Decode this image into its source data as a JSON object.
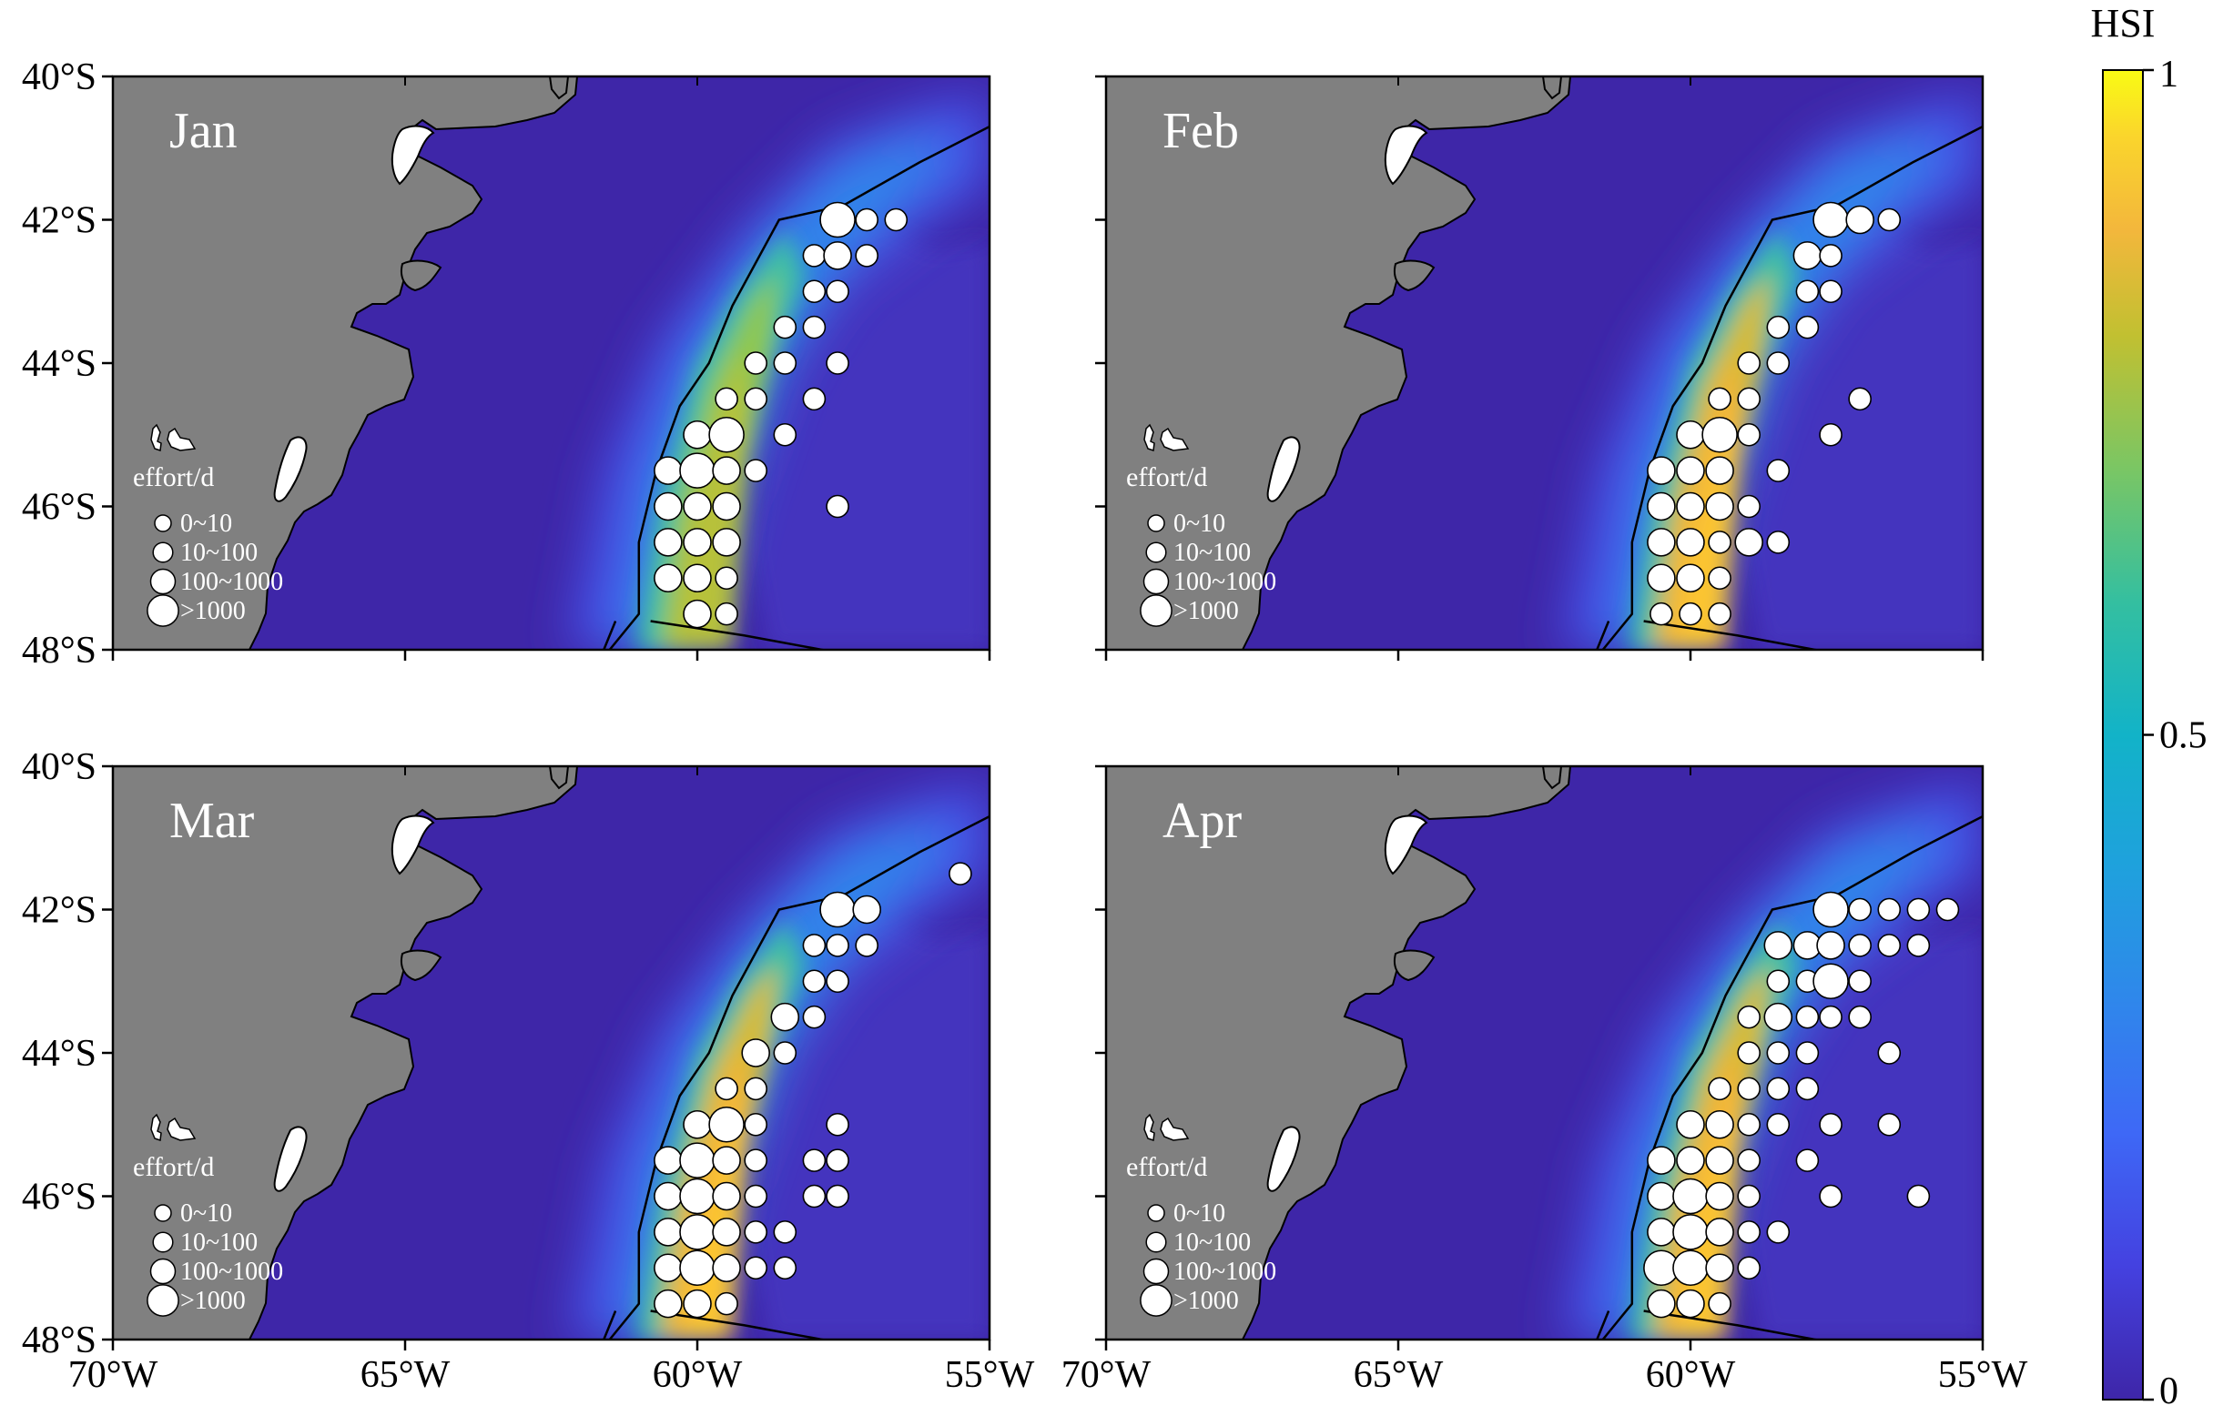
{
  "figure": {
    "colorbar": {
      "title": "HSI",
      "ticks": [
        {
          "value": 1,
          "label": "1"
        },
        {
          "value": 0.5,
          "label": "0.5"
        },
        {
          "value": 0,
          "label": "0"
        }
      ],
      "colormap": "parula",
      "colors": [
        "#3e26a8",
        "#4745dd",
        "#3e6bf8",
        "#2d8ee8",
        "#16a9d8",
        "#1bbbb5",
        "#49c58a",
        "#8fc74f",
        "#c9bf30",
        "#f4b33b",
        "#fbd52a",
        "#f9fb14"
      ]
    },
    "axes": {
      "lon_ticks": [
        {
          "value": -70,
          "label": "70°W"
        },
        {
          "value": -65,
          "label": "65°W"
        },
        {
          "value": -60,
          "label": "60°W"
        },
        {
          "value": -55,
          "label": "55°W"
        }
      ],
      "lat_ticks": [
        {
          "value": -40,
          "label": "40°S"
        },
        {
          "value": -42,
          "label": "42°S"
        },
        {
          "value": -44,
          "label": "44°S"
        },
        {
          "value": -46,
          "label": "46°S"
        },
        {
          "value": -48,
          "label": "48°S"
        }
      ],
      "lon_range": [
        -70,
        -55
      ],
      "lat_range": [
        -48,
        -40
      ]
    },
    "legend": {
      "title": "effort/d",
      "entries": [
        "0~10",
        "10~100",
        "100~1000",
        ">1000"
      ]
    },
    "panels": [
      {
        "month": "Jan",
        "peak_hsi": 0.78
      },
      {
        "month": "Feb",
        "peak_hsi": 0.86
      },
      {
        "month": "Mar",
        "peak_hsi": 0.86
      },
      {
        "month": "Apr",
        "peak_hsi": 0.88
      }
    ],
    "colors": {
      "land": "#808080",
      "ocean": "#3e26a8",
      "points": "#ffffff",
      "outline": "#000000"
    }
  }
}
